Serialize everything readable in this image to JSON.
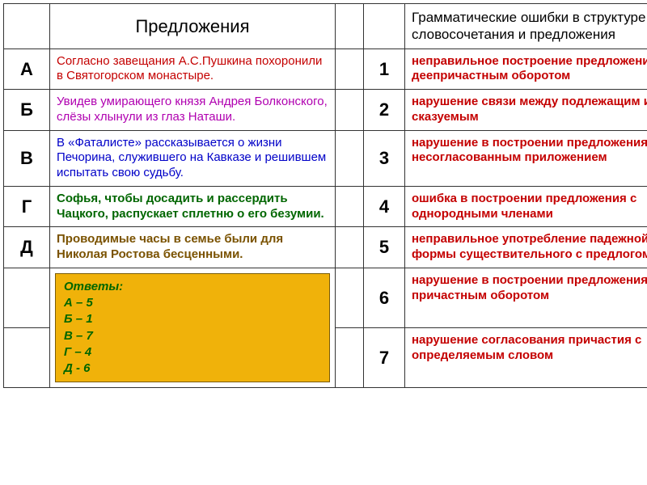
{
  "headers": {
    "left": "Предложения",
    "right": "Грамматические ошибки в структуре словосочетания и предложения"
  },
  "sentences": {
    "A": {
      "letter": "А",
      "text": "Согласно завещания А.С.Пушкина похоронили в Святогорском монастыре.",
      "color": "#c40000"
    },
    "B": {
      "letter": "Б",
      "text": "Увидев умирающего князя Андрея Болконского, слёзы хлынули из глаз Наташи.",
      "color": "#b000b0"
    },
    "C": {
      "letter": "В",
      "text": "В «Фаталисте» рассказывается о жизни Печорина, служившего на Кавказе и решившем испытать свою судьбу.",
      "color": "#0000c8"
    },
    "D": {
      "letter": "Г",
      "text": "Софья, чтобы досадить и рассердить Чацкого, распускает сплетню о его безумии.",
      "color": "#006600",
      "bold": true
    },
    "E": {
      "letter": "Д",
      "text": "Проводимые часы в семье были для Николая Ростова бесценными.",
      "color": "#7a5200",
      "bold": true
    }
  },
  "errors": {
    "1": {
      "num": "1",
      "text": "неправильное построение предложения с деепричастным оборотом",
      "color": "#c40000"
    },
    "2": {
      "num": "2",
      "text": "нарушение связи между подлежащим и сказуемым",
      "color": "#c40000"
    },
    "3": {
      "num": "3",
      "text": "нарушение в построении предложения с несогласованным приложением",
      "color": "#c40000"
    },
    "4": {
      "num": "4",
      "text": "ошибка в построении предложения с однородными членами",
      "color": "#c40000"
    },
    "5": {
      "num": "5",
      "text": "неправильное употребление падежной формы существительного с предлогом",
      "color": "#c40000"
    },
    "6": {
      "num": "6",
      "text": "нарушение в построении предложения с причастным оборотом",
      "color": "#c40000"
    },
    "7": {
      "num": "7",
      "text": "нарушение согласования причастия с определяемым словом",
      "color": "#c40000"
    }
  },
  "answers": {
    "title": "Ответы:",
    "lines": [
      "А – 5",
      "Б – 1",
      "В – 7",
      "Г – 4",
      "Д - 6"
    ]
  },
  "style": {
    "answer_bg": "#f0b20a",
    "answer_border": "#7a5c07",
    "answer_text": "#006600"
  }
}
